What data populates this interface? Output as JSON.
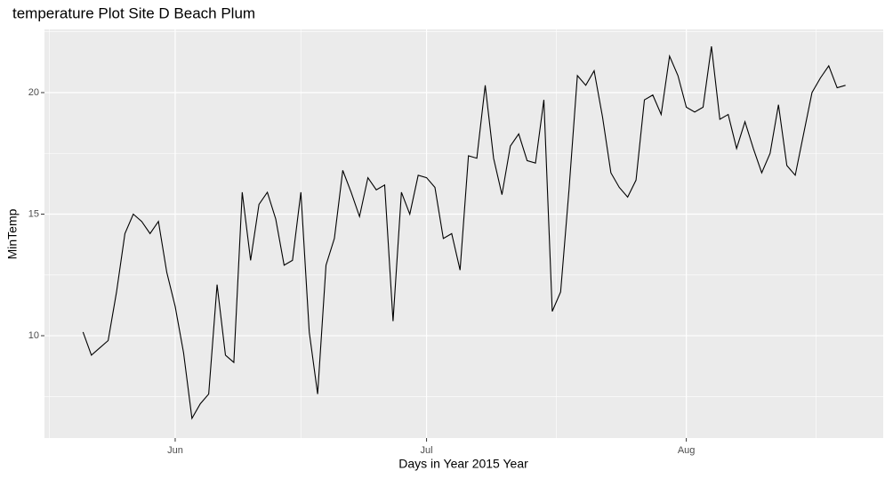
{
  "chart_data": {
    "type": "line",
    "title": "temperature Plot Site D Beach Plum",
    "x_label": "Days in Year 2015 Year",
    "y_label": "MinTemp",
    "x": [
      141,
      142,
      143,
      144,
      145,
      146,
      147,
      148,
      149,
      150,
      151,
      152,
      153,
      154,
      155,
      156,
      157,
      158,
      159,
      160,
      161,
      162,
      163,
      164,
      165,
      166,
      167,
      168,
      169,
      170,
      171,
      172,
      173,
      174,
      175,
      176,
      177,
      178,
      179,
      180,
      181,
      182,
      183,
      184,
      185,
      186,
      187,
      188,
      189,
      190,
      191,
      192,
      193,
      194,
      195,
      196,
      197,
      198,
      199,
      200,
      201,
      202,
      203,
      204,
      205,
      206,
      207,
      208,
      209,
      210,
      211,
      212,
      213,
      214,
      215,
      216,
      217,
      218,
      219,
      220,
      221,
      222,
      223,
      224,
      225,
      226,
      227,
      228,
      229,
      230,
      231,
      232
    ],
    "values": [
      10.15,
      9.2,
      9.5,
      9.8,
      11.8,
      14.2,
      15.0,
      14.7,
      14.2,
      14.7,
      12.6,
      11.2,
      9.3,
      6.6,
      7.2,
      7.6,
      12.1,
      9.2,
      8.9,
      15.9,
      13.1,
      15.4,
      15.9,
      14.8,
      12.9,
      13.1,
      15.9,
      10.15,
      7.6,
      12.9,
      14.0,
      16.8,
      15.9,
      14.9,
      16.5,
      16.0,
      16.2,
      10.6,
      15.9,
      15.0,
      16.6,
      16.5,
      16.1,
      14.0,
      14.2,
      12.7,
      17.4,
      17.3,
      20.3,
      17.3,
      15.8,
      17.8,
      18.3,
      17.2,
      17.1,
      19.7,
      11.0,
      11.8,
      16.0,
      20.7,
      20.3,
      20.9,
      19.0,
      16.7,
      16.1,
      15.7,
      16.4,
      19.7,
      19.9,
      19.1,
      21.5,
      20.7,
      19.4,
      19.2,
      19.4,
      21.9,
      18.9,
      19.1,
      17.7,
      18.8,
      17.7,
      16.7,
      17.5,
      19.5,
      17.0,
      16.6,
      18.3,
      20.0,
      20.6,
      21.1,
      20.2,
      20.3
    ],
    "color": "#000000",
    "xlim": [
      136.4,
      236.5
    ],
    "ylim": [
      5.79,
      22.6
    ],
    "xticks": [
      {
        "value": 152,
        "label": "Jun"
      },
      {
        "value": 182,
        "label": "Jul"
      },
      {
        "value": 213,
        "label": "Aug"
      }
    ],
    "yticks": [
      10,
      15,
      20
    ],
    "grid": true,
    "panel_color": "#ebebeb"
  }
}
